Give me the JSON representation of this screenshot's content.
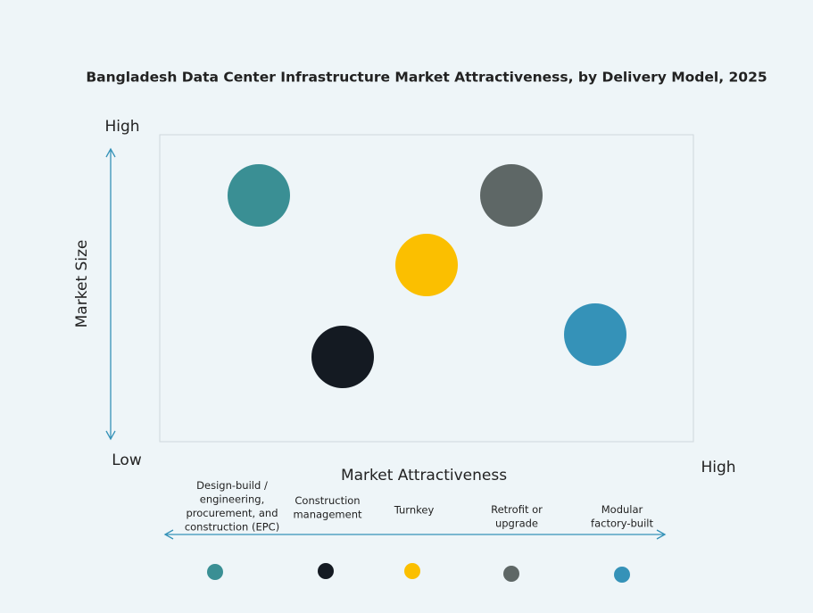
{
  "title": "Bangladesh Data Center Infrastructure Market Attractiveness,  by Delivery Model, 2025",
  "y_axis": {
    "label": "Market Size",
    "high": "High",
    "low": "Low"
  },
  "x_axis": {
    "label": "Market Attractiveness",
    "high": "High"
  },
  "items": [
    {
      "label_lines": [
        "Design-build /",
        "engineering,",
        "procurement, and",
        "construction (EPC)"
      ],
      "color": "#3a8f94"
    },
    {
      "label_lines": [
        "Construction",
        "management"
      ],
      "color": "#141a22"
    },
    {
      "label_lines": [
        "Turnkey"
      ],
      "color": "#fbbf00"
    },
    {
      "label_lines": [
        "Retrofit or",
        "upgrade"
      ],
      "color": "#5e6766"
    },
    {
      "label_lines": [
        "Modular",
        "factory-built"
      ],
      "color": "#3592b8"
    }
  ]
}
